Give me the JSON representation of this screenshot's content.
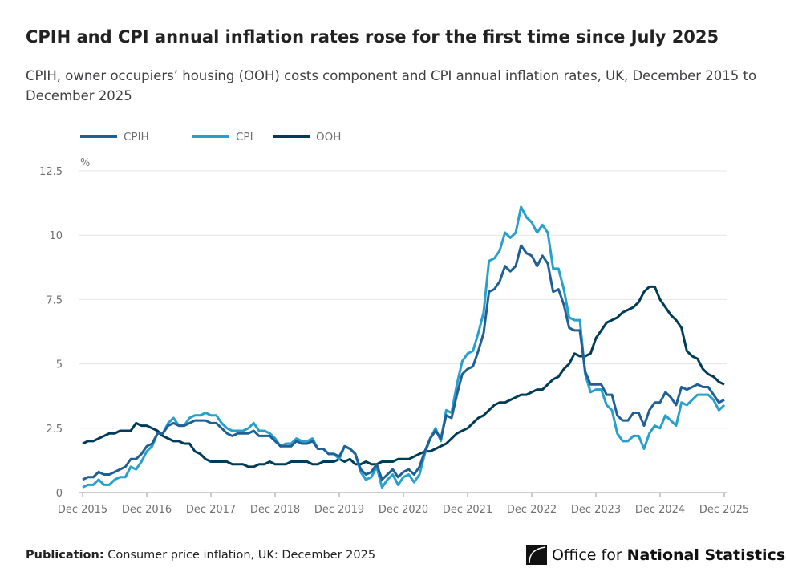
{
  "title": "CPIH and CPI annual inflation rates rose for the first time since July 2025",
  "subtitle": "CPIH, owner occupiers’ housing (OOH) costs component and CPI annual inflation rates, UK, December 2015 to December 2025",
  "footer": {
    "label": "Publication:",
    "text": "Consumer price inflation, UK: December 2025"
  },
  "logo": {
    "text_plain": "Office for",
    "text_bold": "National Statistics"
  },
  "chart_data": {
    "type": "line",
    "ylabel": "%",
    "ylim": [
      0,
      12.5
    ],
    "yticks": [
      "0",
      "2.5",
      "5",
      "7.5",
      "10",
      "12.5"
    ],
    "yticks_values": [
      0,
      2.5,
      5,
      7.5,
      10,
      12.5
    ],
    "xticks": [
      "Dec 2015",
      "Dec 2016",
      "Dec 2017",
      "Dec 2018",
      "Dec 2019",
      "Dec 2020",
      "Dec 2021",
      "Dec 2022",
      "Dec 2023",
      "Dec 2024",
      "Dec 2025"
    ],
    "x_start": "Dec 2015",
    "x_end": "Dec 2025",
    "frequency": "monthly",
    "grid": true,
    "legend_position": "top-left",
    "series": [
      {
        "name": "CPIH",
        "color": "#206095",
        "values": [
          0.5,
          0.6,
          0.6,
          0.8,
          0.7,
          0.7,
          0.8,
          0.9,
          1.0,
          1.3,
          1.3,
          1.5,
          1.8,
          1.9,
          2.3,
          2.3,
          2.6,
          2.7,
          2.6,
          2.6,
          2.7,
          2.8,
          2.8,
          2.8,
          2.7,
          2.7,
          2.5,
          2.3,
          2.2,
          2.3,
          2.3,
          2.3,
          2.4,
          2.2,
          2.2,
          2.2,
          2.0,
          1.8,
          1.8,
          1.8,
          2.0,
          1.9,
          1.9,
          2.0,
          1.7,
          1.7,
          1.5,
          1.5,
          1.4,
          1.8,
          1.7,
          1.5,
          0.9,
          0.7,
          0.8,
          1.1,
          0.5,
          0.7,
          0.9,
          0.6,
          0.8,
          0.9,
          0.7,
          1.0,
          1.6,
          2.1,
          2.4,
          2.1,
          3.0,
          2.9,
          3.8,
          4.6,
          4.8,
          4.9,
          5.5,
          6.2,
          7.8,
          7.9,
          8.2,
          8.8,
          8.6,
          8.8,
          9.6,
          9.3,
          9.2,
          8.8,
          9.2,
          8.9,
          7.8,
          7.9,
          7.3,
          6.4,
          6.3,
          6.3,
          4.7,
          4.2,
          4.2,
          4.2,
          3.8,
          3.8,
          3.0,
          2.8,
          2.8,
          3.1,
          3.1,
          2.6,
          3.2,
          3.5,
          3.5,
          3.9,
          3.7,
          3.4,
          4.1,
          4.0,
          4.1,
          4.2,
          4.1,
          4.1,
          3.8,
          3.5,
          3.6
        ]
      },
      {
        "name": "CPI",
        "color": "#27a0cc",
        "values": [
          0.2,
          0.3,
          0.3,
          0.5,
          0.3,
          0.3,
          0.5,
          0.6,
          0.6,
          1.0,
          0.9,
          1.2,
          1.6,
          1.8,
          2.3,
          2.3,
          2.7,
          2.9,
          2.6,
          2.6,
          2.9,
          3.0,
          3.0,
          3.1,
          3.0,
          3.0,
          2.7,
          2.5,
          2.4,
          2.4,
          2.4,
          2.5,
          2.7,
          2.4,
          2.4,
          2.3,
          2.1,
          1.8,
          1.9,
          1.9,
          2.1,
          2.0,
          2.0,
          2.1,
          1.7,
          1.7,
          1.5,
          1.5,
          1.3,
          1.8,
          1.7,
          1.5,
          0.8,
          0.5,
          0.6,
          1.0,
          0.2,
          0.5,
          0.7,
          0.3,
          0.6,
          0.7,
          0.4,
          0.7,
          1.5,
          2.1,
          2.5,
          2.0,
          3.2,
          3.1,
          4.2,
          5.1,
          5.4,
          5.5,
          6.2,
          7.0,
          9.0,
          9.1,
          9.4,
          10.1,
          9.9,
          10.1,
          11.1,
          10.7,
          10.5,
          10.1,
          10.4,
          10.1,
          8.7,
          8.7,
          7.9,
          6.8,
          6.7,
          6.7,
          4.6,
          3.9,
          4.0,
          4.0,
          3.4,
          3.2,
          2.3,
          2.0,
          2.0,
          2.2,
          2.2,
          1.7,
          2.3,
          2.6,
          2.5,
          3.0,
          2.8,
          2.6,
          3.5,
          3.4,
          3.6,
          3.8,
          3.8,
          3.8,
          3.6,
          3.2,
          3.4
        ]
      },
      {
        "name": "OOH",
        "color": "#003c57",
        "values": [
          1.9,
          2.0,
          2.0,
          2.1,
          2.2,
          2.3,
          2.3,
          2.4,
          2.4,
          2.4,
          2.7,
          2.6,
          2.6,
          2.5,
          2.4,
          2.2,
          2.1,
          2.0,
          2.0,
          1.9,
          1.9,
          1.6,
          1.5,
          1.3,
          1.2,
          1.2,
          1.2,
          1.2,
          1.1,
          1.1,
          1.1,
          1.0,
          1.0,
          1.1,
          1.1,
          1.2,
          1.1,
          1.1,
          1.1,
          1.2,
          1.2,
          1.2,
          1.2,
          1.1,
          1.1,
          1.2,
          1.2,
          1.2,
          1.3,
          1.2,
          1.3,
          1.1,
          1.1,
          1.2,
          1.1,
          1.1,
          1.2,
          1.2,
          1.2,
          1.3,
          1.3,
          1.3,
          1.4,
          1.5,
          1.6,
          1.6,
          1.7,
          1.8,
          1.9,
          2.1,
          2.3,
          2.4,
          2.5,
          2.7,
          2.9,
          3.0,
          3.2,
          3.4,
          3.5,
          3.5,
          3.6,
          3.7,
          3.8,
          3.8,
          3.9,
          4.0,
          4.0,
          4.2,
          4.4,
          4.5,
          4.8,
          5.0,
          5.4,
          5.3,
          5.3,
          5.4,
          6.0,
          6.3,
          6.6,
          6.7,
          6.8,
          7.0,
          7.1,
          7.2,
          7.4,
          7.8,
          8.0,
          8.0,
          7.5,
          7.2,
          6.9,
          6.7,
          6.4,
          5.5,
          5.3,
          5.2,
          4.8,
          4.6,
          4.5,
          4.3,
          4.2
        ]
      }
    ]
  }
}
